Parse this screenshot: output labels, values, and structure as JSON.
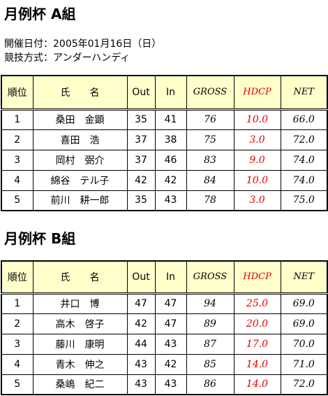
{
  "sections": [
    {
      "title": "月例杯 A組",
      "info": [
        "開催日付：2005年01月16日（日）",
        "競技方式：アンダーハンディ"
      ],
      "header": [
        "順位",
        "氏　　名",
        "Out",
        "In",
        "GROSS",
        "HDCP",
        "NET"
      ],
      "rows": [
        [
          "1",
          "桑田　金顕",
          "35",
          "41",
          "76",
          "10.0",
          "66.0"
        ],
        [
          "2",
          "喜田　浩",
          "37",
          "38",
          "75",
          "3.0",
          "72.0"
        ],
        [
          "3",
          "岡村　弼介",
          "37",
          "46",
          "83",
          "9.0",
          "74.0"
        ],
        [
          "4",
          "綿谷　テル子",
          "42",
          "42",
          "84",
          "10.0",
          "74.0"
        ],
        [
          "5",
          "前川　耕一郎",
          "35",
          "43",
          "78",
          "3.0",
          "75.0"
        ]
      ]
    },
    {
      "title": "月例杯 B組",
      "header": [
        "順位",
        "氏　　名",
        "Out",
        "In",
        "GROSS",
        "HDCP",
        "NET"
      ],
      "rows": [
        [
          "1",
          "井口　博",
          "47",
          "47",
          "94",
          "25.0",
          "69.0"
        ],
        [
          "2",
          "高木　啓子",
          "42",
          "47",
          "89",
          "20.0",
          "69.0"
        ],
        [
          "3",
          "藤川　康明",
          "44",
          "43",
          "87",
          "17.0",
          "70.0"
        ],
        [
          "4",
          "青木　伸之",
          "43",
          "42",
          "85",
          "14.0",
          "71.0"
        ],
        [
          "5",
          "桑嶋　紀二",
          "43",
          "43",
          "86",
          "14.0",
          "72.0"
        ]
      ]
    }
  ]
}
